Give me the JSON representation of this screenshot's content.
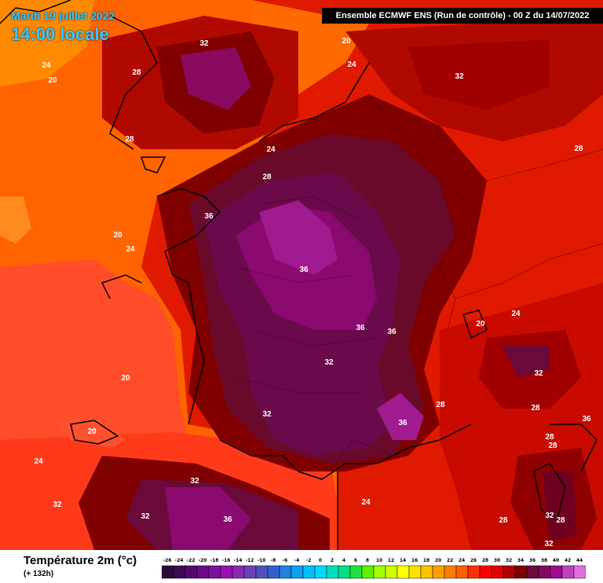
{
  "header": {
    "date": "Mardi 19 juillet 2022",
    "time": "14:00 locale",
    "run": "Ensemble ECMWF ENS  (Run de contrôle)  -  00 Z du 14/07/2022"
  },
  "map": {
    "labels": [
      {
        "text": "24"
      },
      {
        "text": "20"
      },
      {
        "text": "32"
      },
      {
        "text": "20"
      },
      {
        "text": "24"
      },
      {
        "text": "28"
      },
      {
        "text": "32"
      },
      {
        "text": "28"
      },
      {
        "text": "24"
      },
      {
        "text": "28"
      },
      {
        "text": "28"
      },
      {
        "text": "36"
      },
      {
        "text": "20"
      },
      {
        "text": "24"
      },
      {
        "text": "36"
      },
      {
        "text": "36"
      },
      {
        "text": "36"
      },
      {
        "text": "20"
      },
      {
        "text": "24"
      },
      {
        "text": "32"
      },
      {
        "text": "32"
      },
      {
        "text": "20"
      },
      {
        "text": "28"
      },
      {
        "text": "28"
      },
      {
        "text": "32"
      },
      {
        "text": "36"
      },
      {
        "text": "36"
      },
      {
        "text": "20"
      },
      {
        "text": "28"
      },
      {
        "text": "28"
      },
      {
        "text": "24"
      },
      {
        "text": "32"
      },
      {
        "text": "32"
      },
      {
        "text": "32"
      },
      {
        "text": "36"
      },
      {
        "text": "24"
      },
      {
        "text": "28"
      },
      {
        "text": "32"
      },
      {
        "text": "28"
      },
      {
        "text": "32"
      }
    ]
  },
  "legend": {
    "title": "Température 2m (°c)",
    "subtitle": "(+ 132h)",
    "ticks": [
      "-26",
      "-24",
      "-22",
      "-20",
      "-18",
      "-16",
      "-14",
      "-12",
      "-10",
      "-8",
      "-6",
      "-4",
      "-2",
      "0",
      "2",
      "4",
      "6",
      "8",
      "10",
      "12",
      "14",
      "16",
      "18",
      "20",
      "22",
      "24",
      "26",
      "28",
      "30",
      "32",
      "34",
      "36",
      "38",
      "40",
      "42",
      "44"
    ],
    "colors": [
      "#2a0a3a",
      "#3d0a55",
      "#520a70",
      "#6a0a8a",
      "#8010a0",
      "#9a10b4",
      "#8a2ab0",
      "#6a40b8",
      "#5050c0",
      "#3060d0",
      "#2080e0",
      "#10a0f0",
      "#00c0ff",
      "#00d8ff",
      "#00e0c0",
      "#00e080",
      "#20e040",
      "#60f000",
      "#a0ff00",
      "#d0ff00",
      "#ffff00",
      "#ffe000",
      "#ffc000",
      "#ffa000",
      "#ff8000",
      "#ff6000",
      "#ff3000",
      "#ff0000",
      "#e00000",
      "#b00000",
      "#800000",
      "#6a0a3a",
      "#800a60",
      "#a00a90",
      "#c040c0",
      "#e070e0"
    ]
  },
  "colors": {
    "header_text": "#33ccff"
  }
}
